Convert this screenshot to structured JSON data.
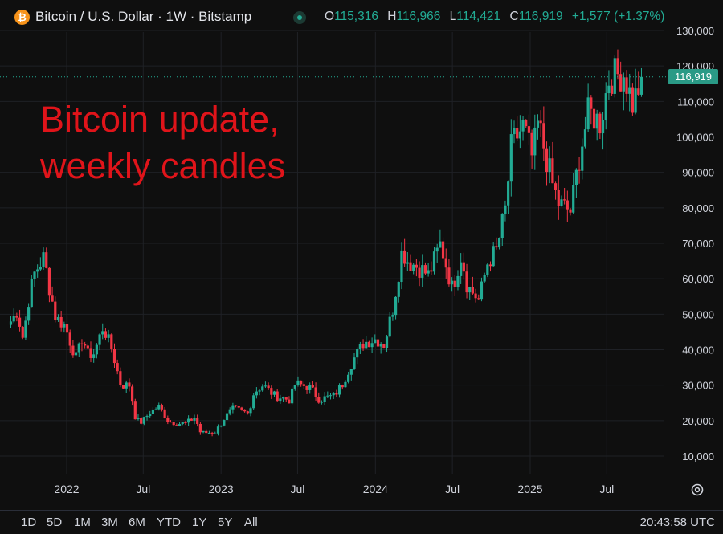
{
  "header": {
    "coin_glyph": "₿",
    "title": "Bitcoin / U.S. Dollar · 1W · Bitstamp",
    "ohlc": [
      {
        "key": "O",
        "value": "115,316"
      },
      {
        "key": "H",
        "value": "116,966"
      },
      {
        "key": "L",
        "value": "114,421"
      },
      {
        "key": "C",
        "value": "116,919"
      }
    ],
    "change": "+1,577 (+1.37%)"
  },
  "annotation": {
    "line1": "Bitcoin update,",
    "line2": "weekly candles"
  },
  "current_price_label": "116,919",
  "footer": {
    "ranges": [
      "1D",
      "5D",
      "1M",
      "3M",
      "6M",
      "YTD",
      "1Y",
      "5Y",
      "All"
    ],
    "clock": "20:43:58 UTC"
  },
  "colors": {
    "up": "#22ab94",
    "down": "#f23645",
    "background": "#0f0f0f",
    "annotation": "#e0141a"
  },
  "chart_data": {
    "type": "candlestick",
    "interval": "1W",
    "y_scale": "linear",
    "ylim": [
      5000,
      132000
    ],
    "y_ticks": [
      10000,
      20000,
      30000,
      40000,
      50000,
      60000,
      70000,
      80000,
      90000,
      100000,
      110000,
      120000,
      130000
    ],
    "y_tick_labels": [
      "10,000",
      "20,000",
      "30,000",
      "40,000",
      "50,000",
      "60,000",
      "70,000",
      "80,000",
      "90,000",
      "100,000",
      "110,000",
      "120,000",
      "130,000"
    ],
    "x_ticks": [
      {
        "label": "2022",
        "date": "2022-01-01"
      },
      {
        "label": "Jul",
        "date": "2022-07-01"
      },
      {
        "label": "2023",
        "date": "2023-01-01"
      },
      {
        "label": "Jul",
        "date": "2023-07-01"
      },
      {
        "label": "2024",
        "date": "2024-01-01"
      },
      {
        "label": "Jul",
        "date": "2024-07-01"
      },
      {
        "label": "2025",
        "date": "2025-01-01"
      },
      {
        "label": "Jul",
        "date": "2025-07-01"
      }
    ],
    "x_range": [
      "2021-08-22",
      "2025-09-28"
    ],
    "grid": true,
    "last_close": 116919,
    "anchors": [
      [
        "2021-08-23",
        48000
      ],
      [
        "2021-09-06",
        51000
      ],
      [
        "2021-09-20",
        43000
      ],
      [
        "2021-10-04",
        55000
      ],
      [
        "2021-10-18",
        62000
      ],
      [
        "2021-11-08",
        66000
      ],
      [
        "2021-11-22",
        57000
      ],
      [
        "2021-12-06",
        49000
      ],
      [
        "2021-12-27",
        47000
      ],
      [
        "2022-01-10",
        42000
      ],
      [
        "2022-01-24",
        37500
      ],
      [
        "2022-02-07",
        43500
      ],
      [
        "2022-02-21",
        38500
      ],
      [
        "2022-03-07",
        39000
      ],
      [
        "2022-03-28",
        46500
      ],
      [
        "2022-04-18",
        40000
      ],
      [
        "2022-05-09",
        30000
      ],
      [
        "2022-05-30",
        30000
      ],
      [
        "2022-06-13",
        20500
      ],
      [
        "2022-06-27",
        19500
      ],
      [
        "2022-07-18",
        22500
      ],
      [
        "2022-08-08",
        24000
      ],
      [
        "2022-08-29",
        20000
      ],
      [
        "2022-09-19",
        19200
      ],
      [
        "2022-10-10",
        19200
      ],
      [
        "2022-10-31",
        21000
      ],
      [
        "2022-11-14",
        16500
      ],
      [
        "2022-12-19",
        16800
      ],
      [
        "2023-01-09",
        20800
      ],
      [
        "2023-01-30",
        23500
      ],
      [
        "2023-03-06",
        22000
      ],
      [
        "2023-03-20",
        28000
      ],
      [
        "2023-04-10",
        30000
      ],
      [
        "2023-05-08",
        27000
      ],
      [
        "2023-06-12",
        25800
      ],
      [
        "2023-06-26",
        30500
      ],
      [
        "2023-07-31",
        29300
      ],
      [
        "2023-08-21",
        26000
      ],
      [
        "2023-09-25",
        27000
      ],
      [
        "2023-10-16",
        30500
      ],
      [
        "2023-11-06",
        36500
      ],
      [
        "2023-12-04",
        42000
      ],
      [
        "2024-01-01",
        43000
      ],
      [
        "2024-01-22",
        41500
      ],
      [
        "2024-02-12",
        52000
      ],
      [
        "2024-03-04",
        68000
      ],
      [
        "2024-03-18",
        65000
      ],
      [
        "2024-04-15",
        63000
      ],
      [
        "2024-05-06",
        61000
      ],
      [
        "2024-06-03",
        70000
      ],
      [
        "2024-07-01",
        57000
      ],
      [
        "2024-07-22",
        67000
      ],
      [
        "2024-08-05",
        58000
      ],
      [
        "2024-09-02",
        54000
      ],
      [
        "2024-09-23",
        65000
      ],
      [
        "2024-10-14",
        68000
      ],
      [
        "2024-11-04",
        80000
      ],
      [
        "2024-11-18",
        98000
      ],
      [
        "2024-12-16",
        103000
      ],
      [
        "2025-01-06",
        94000
      ],
      [
        "2025-01-20",
        104000
      ],
      [
        "2025-02-24",
        86000
      ],
      [
        "2025-03-10",
        81000
      ],
      [
        "2025-04-07",
        79000
      ],
      [
        "2025-04-28",
        95000
      ],
      [
        "2025-05-19",
        107000
      ],
      [
        "2025-06-16",
        104000
      ],
      [
        "2025-07-07",
        117000
      ],
      [
        "2025-08-11",
        118000
      ],
      [
        "2025-09-01",
        109000
      ],
      [
        "2025-09-22",
        116919
      ]
    ]
  }
}
